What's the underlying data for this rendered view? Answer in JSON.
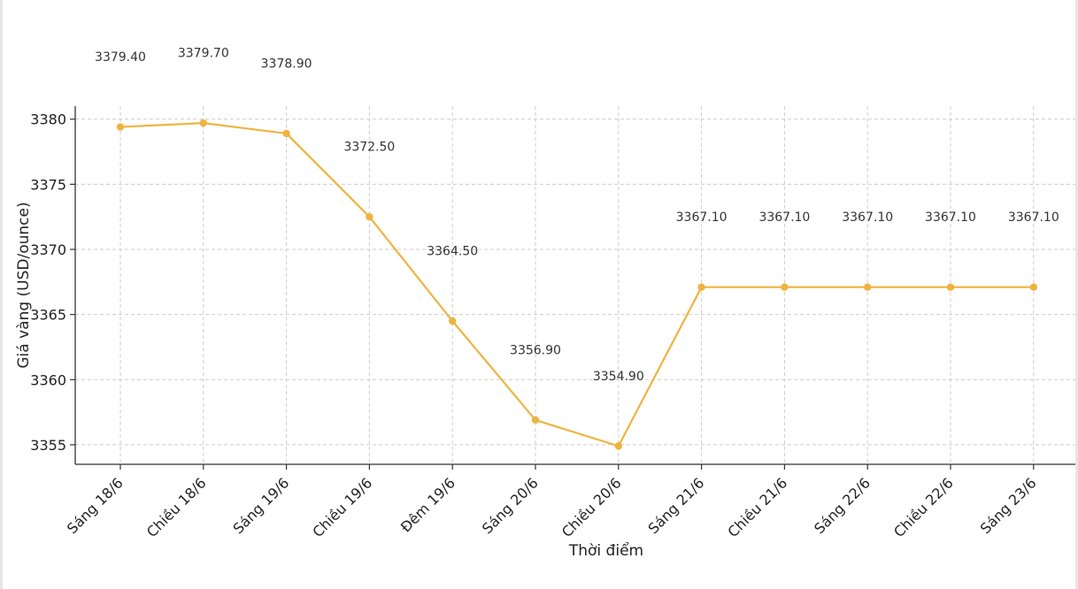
{
  "chart_data": {
    "type": "line",
    "title": "",
    "xlabel": "Thời điểm",
    "ylabel": "Giá vàng (USD/ounce)",
    "categories": [
      "Sáng 18/6",
      "Chiều 18/6",
      "Sáng 19/6",
      "Chiều 19/6",
      "Đêm 19/6",
      "Sáng 20/6",
      "Chiều 20/6",
      "Sáng 21/6",
      "Chiều 21/6",
      "Sáng 22/6",
      "Chiều 22/6",
      "Sáng 23/6"
    ],
    "values": [
      3379.4,
      3379.7,
      3378.9,
      3372.5,
      3364.5,
      3356.9,
      3354.9,
      3367.1,
      3367.1,
      3367.1,
      3367.1,
      3367.1
    ],
    "data_labels": [
      "3379.40",
      "3379.70",
      "3378.90",
      "3372.50",
      "3364.50",
      "3356.90",
      "3354.90",
      "3367.10",
      "3367.10",
      "3367.10",
      "3367.10",
      "3367.10"
    ],
    "ylim": [
      3353.5,
      3381
    ],
    "yticks": [
      3355,
      3360,
      3365,
      3370,
      3375,
      3380
    ],
    "grid": true,
    "line_color": "#EFB33F"
  }
}
